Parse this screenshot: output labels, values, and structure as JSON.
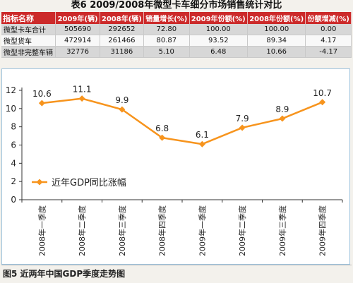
{
  "table": {
    "title": "表6 2009/2008年微型卡车细分市场销售统计对比",
    "headers": [
      "指标名称",
      "2009年(辆)",
      "2008年(辆)",
      "销量增长(%)",
      "2009年份额(%)",
      "2008年份额(%)",
      "份额增减(%)"
    ],
    "rows": [
      [
        "微型卡车合计",
        "505690",
        "292652",
        "72.80",
        "100.00",
        "100.00",
        "0.00"
      ],
      [
        "微型货车",
        "472914",
        "261466",
        "80.87",
        "93.52",
        "89.34",
        "4.17"
      ],
      [
        "微型非完整车辆",
        "32776",
        "31186",
        "5.10",
        "6.48",
        "10.66",
        "-4.17"
      ]
    ]
  },
  "caption": "图5 近两年中国GDP季度走势图",
  "colors": {
    "header_bg": "#cc2a2a",
    "series": "#f7941d",
    "chart_border": "#9ec3dd"
  },
  "chart_data": {
    "type": "line",
    "categories": [
      "2008年一季度",
      "2008年二季度",
      "2008年三季度",
      "2008年四季度",
      "2009年一季度",
      "2009年二季度",
      "2009年三季度",
      "2009年四季度"
    ],
    "series": [
      {
        "name": "近年GDP同比涨幅",
        "values": [
          10.6,
          11.1,
          9.9,
          6.8,
          6.1,
          7.9,
          8.9,
          10.7
        ]
      }
    ],
    "data_labels": [
      "10.6",
      "11.1",
      "9.9",
      "6.8",
      "6.1",
      "7.9",
      "8.9",
      "10.7"
    ],
    "yticks": [
      0,
      2,
      4,
      6,
      8,
      10,
      12
    ],
    "ylim": [
      0,
      12
    ],
    "grid": false,
    "legend": "lower-left"
  }
}
